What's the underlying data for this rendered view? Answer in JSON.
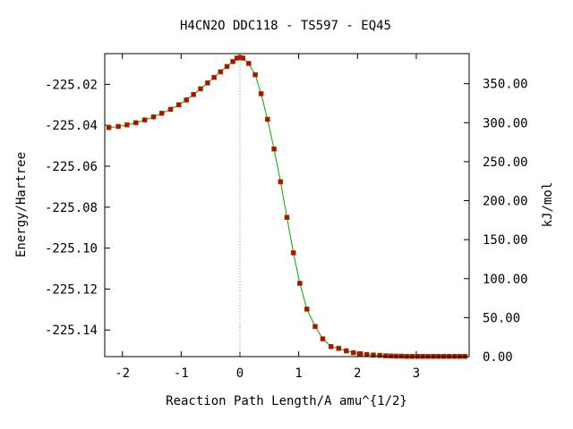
{
  "chart_data": {
    "type": "line",
    "title": "H4CN2O   DDC118 - TS597 - EQ45",
    "xlabel": "Reaction Path Length/A amu^{1/2}",
    "ylabel": "Energy/Hartree",
    "y2label": "kJ/mol",
    "xlim": [
      -2.3,
      3.9
    ],
    "ylim": [
      -225.153,
      -225.005
    ],
    "y2lim": [
      0.0,
      388.57
    ],
    "x_ticks": [
      -2,
      -1,
      0,
      1,
      2,
      3
    ],
    "x_tick_labels": [
      "-2",
      "-1",
      "0",
      "1",
      "2",
      "3"
    ],
    "y_ticks": [
      -225.02,
      -225.04,
      -225.06,
      -225.08,
      -225.1,
      -225.12,
      -225.14
    ],
    "y_tick_labels": [
      "-225.02",
      "-225.04",
      "-225.06",
      "-225.08",
      "-225.10",
      "-225.12",
      "-225.14"
    ],
    "y2_ticks": [
      0,
      50,
      100,
      150,
      200,
      250,
      300,
      350
    ],
    "y2_tick_labels": [
      "0.00",
      "50.00",
      "100.00",
      "150.00",
      "200.00",
      "250.00",
      "300.00",
      "350.00"
    ],
    "ts_marker_x": 0,
    "colors": {
      "line": "#00aa00",
      "marker": "#cc0000",
      "marker_edge": "#666600",
      "ts_line": "#999999"
    },
    "series": [
      {
        "x": [
          -2.23,
          -2.07,
          -1.92,
          -1.77,
          -1.62,
          -1.47,
          -1.33,
          -1.18,
          -1.04,
          -0.91,
          -0.79,
          -0.67,
          -0.55,
          -0.44,
          -0.33,
          -0.22,
          -0.12,
          -0.05,
          0.0,
          0.05,
          0.15,
          0.26,
          0.36,
          0.47,
          0.58,
          0.69,
          0.8,
          0.91,
          1.02,
          1.14,
          1.28,
          1.41,
          1.55,
          1.68,
          1.81,
          1.93,
          2.05,
          2.16,
          2.27,
          2.38,
          2.48,
          2.57,
          2.66,
          2.75,
          2.84,
          2.93,
          3.02,
          3.11,
          3.2,
          3.29,
          3.38,
          3.47,
          3.56,
          3.65,
          3.74,
          3.83
        ],
        "y": [
          -225.0411,
          -225.0406,
          -225.0398,
          -225.0388,
          -225.0374,
          -225.0359,
          -225.0341,
          -225.0322,
          -225.03,
          -225.0276,
          -225.025,
          -225.0222,
          -225.0193,
          -225.0166,
          -225.0139,
          -225.0113,
          -225.0089,
          -225.0072,
          -225.0069,
          -225.0072,
          -225.0098,
          -225.0153,
          -225.0246,
          -225.0371,
          -225.0516,
          -225.0676,
          -225.085,
          -225.1023,
          -225.1172,
          -225.1298,
          -225.1383,
          -225.1443,
          -225.1481,
          -225.149,
          -225.1502,
          -225.1511,
          -225.1516,
          -225.152,
          -225.1522,
          -225.1524,
          -225.1526,
          -225.1527,
          -225.1528,
          -225.1528,
          -225.1529,
          -225.1529,
          -225.1529,
          -225.1529,
          -225.1529,
          -225.1529,
          -225.1529,
          -225.1529,
          -225.1529,
          -225.1529,
          -225.1529,
          -225.1529
        ]
      }
    ]
  }
}
